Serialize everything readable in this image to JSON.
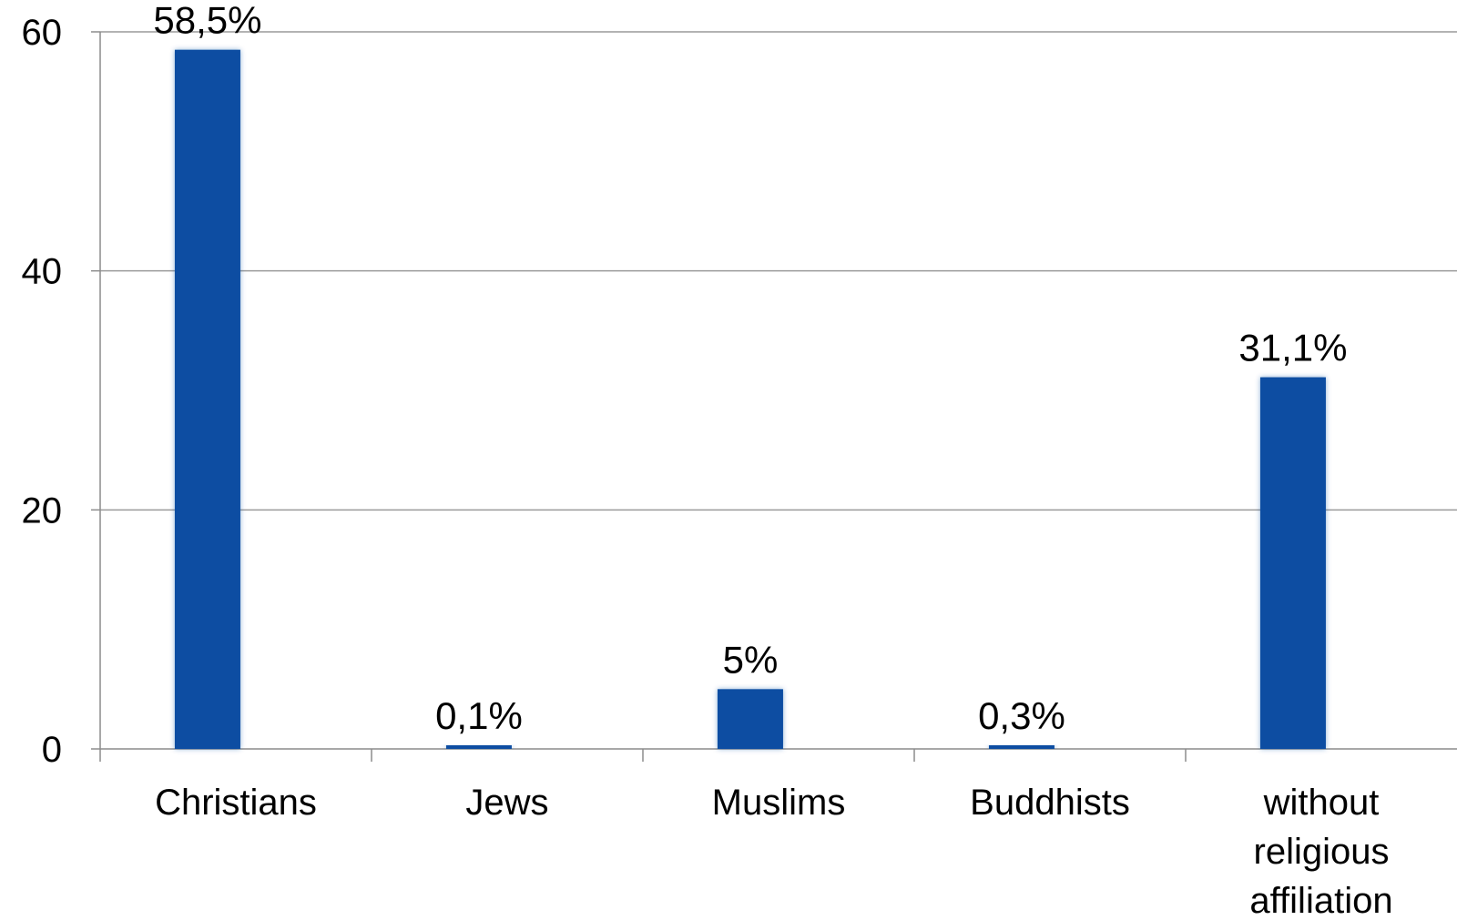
{
  "chart_data": {
    "type": "bar",
    "categories": [
      "Christians",
      "Jews",
      "Muslims",
      "Buddhists",
      "without religious affiliation"
    ],
    "category_label_lines": [
      [
        "Christians"
      ],
      [
        "Jews"
      ],
      [
        "Muslims"
      ],
      [
        "Buddhists"
      ],
      [
        "without",
        "religious",
        "affiliation"
      ]
    ],
    "values": [
      58.5,
      0.1,
      5,
      0.3,
      31.1
    ],
    "data_labels": [
      "58,5%",
      "0,1%",
      "5%",
      "0,3%",
      "31,1%"
    ],
    "title": "",
    "xlabel": "",
    "ylabel": "",
    "ylim": [
      0,
      60
    ],
    "yticks": [
      0,
      20,
      40,
      60
    ],
    "grid": true,
    "legend": "none",
    "bar_color": "#0b4ea2"
  }
}
